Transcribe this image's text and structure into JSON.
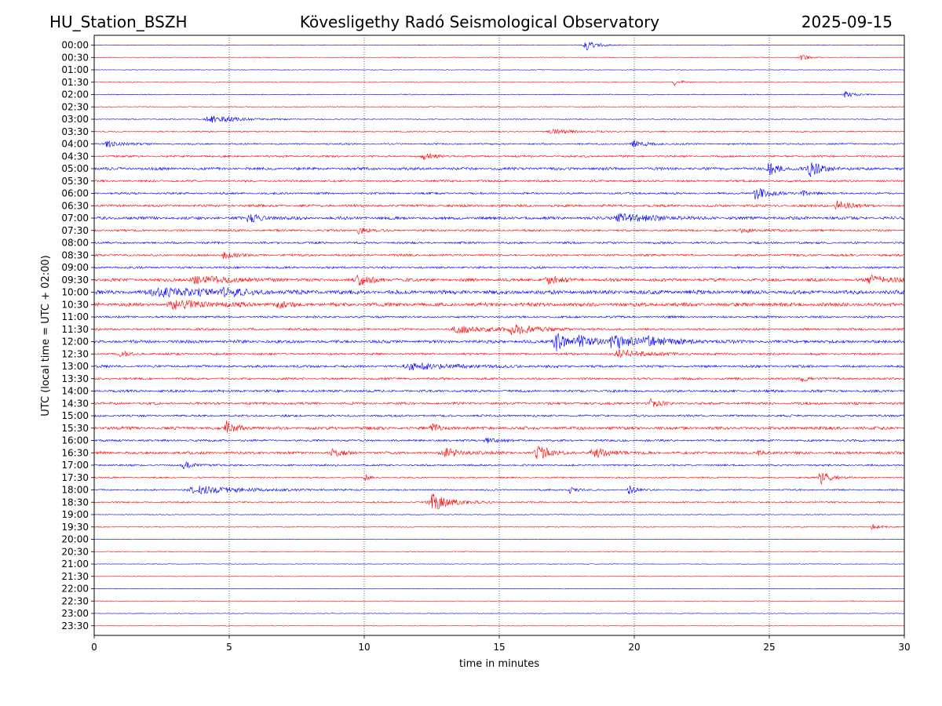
{
  "header": {
    "station": "HU_Station_BSZH",
    "observatory": "Kövesligethy Radó Seismological Observatory",
    "date": "2025-09-15"
  },
  "chart_data": {
    "type": "line",
    "title": "Kövesligethy Radó Seismological Observatory",
    "xlabel": "time in minutes",
    "ylabel": "UTC (local time = UTC + 02:00)",
    "xlim": [
      0,
      30
    ],
    "x_ticks": [
      0,
      5,
      10,
      15,
      20,
      25,
      30
    ],
    "x_gridlines": [
      5,
      10,
      15,
      20,
      25
    ],
    "x_grid_style": "dotted",
    "row_labels": [
      "00:00",
      "00:30",
      "01:00",
      "01:30",
      "02:00",
      "02:30",
      "03:00",
      "03:30",
      "04:00",
      "04:30",
      "05:00",
      "05:30",
      "06:00",
      "06:30",
      "07:00",
      "07:30",
      "08:00",
      "08:30",
      "09:00",
      "09:30",
      "10:00",
      "10:30",
      "11:00",
      "11:30",
      "12:00",
      "12:30",
      "13:00",
      "13:30",
      "14:00",
      "14:30",
      "15:00",
      "15:30",
      "16:00",
      "16:30",
      "17:00",
      "17:30",
      "18:00",
      "18:30",
      "19:00",
      "19:30",
      "20:00",
      "20:30",
      "21:00",
      "21:30",
      "22:00",
      "22:30",
      "23:00",
      "23:30"
    ],
    "row_colors": [
      "#0000ff",
      "#ff0000"
    ],
    "row_background_amplitude": [
      0.5,
      0.5,
      0.4,
      0.5,
      0.6,
      0.6,
      0.6,
      0.8,
      1.0,
      1.3,
      1.8,
      1.4,
      1.4,
      1.6,
      2.0,
      1.4,
      1.4,
      1.4,
      1.4,
      2.0,
      2.6,
      2.4,
      1.4,
      1.4,
      2.0,
      1.4,
      1.6,
      1.4,
      1.6,
      1.6,
      1.4,
      2.0,
      1.4,
      1.8,
      1.2,
      1.0,
      1.0,
      1.0,
      0.5,
      0.6,
      0.4,
      0.5,
      0.4,
      0.4,
      0.4,
      0.4,
      0.4,
      0.4
    ],
    "events": [
      {
        "row": 0,
        "minute": 18.2,
        "amplitude": 7,
        "duration": 0.5
      },
      {
        "row": 1,
        "minute": 26.2,
        "amplitude": 4,
        "duration": 0.3
      },
      {
        "row": 3,
        "minute": 21.5,
        "amplitude": 5,
        "duration": 0.3
      },
      {
        "row": 4,
        "minute": 27.8,
        "amplitude": 4,
        "duration": 0.4
      },
      {
        "row": 6,
        "minute": 4.3,
        "amplitude": 5,
        "duration": 1.2
      },
      {
        "row": 7,
        "minute": 17.0,
        "amplitude": 3,
        "duration": 1.0
      },
      {
        "row": 8,
        "minute": 0.5,
        "amplitude": 4,
        "duration": 0.6
      },
      {
        "row": 8,
        "minute": 20.0,
        "amplitude": 4,
        "duration": 0.6
      },
      {
        "row": 9,
        "minute": 12.2,
        "amplitude": 4,
        "duration": 0.5
      },
      {
        "row": 10,
        "minute": 25.0,
        "amplitude": 9,
        "duration": 0.4
      },
      {
        "row": 10,
        "minute": 26.5,
        "amplitude": 11,
        "duration": 0.5
      },
      {
        "row": 12,
        "minute": 24.5,
        "amplitude": 8,
        "duration": 0.5
      },
      {
        "row": 12,
        "minute": 26.2,
        "amplitude": 4,
        "duration": 0.3
      },
      {
        "row": 13,
        "minute": 27.5,
        "amplitude": 7,
        "duration": 0.5
      },
      {
        "row": 14,
        "minute": 5.7,
        "amplitude": 5,
        "duration": 0.6
      },
      {
        "row": 14,
        "minute": 19.5,
        "amplitude": 5,
        "duration": 1.4
      },
      {
        "row": 15,
        "minute": 9.8,
        "amplitude": 4,
        "duration": 0.4
      },
      {
        "row": 15,
        "minute": 24.0,
        "amplitude": 3,
        "duration": 0.5
      },
      {
        "row": 17,
        "minute": 4.8,
        "amplitude": 5,
        "duration": 0.4
      },
      {
        "row": 19,
        "minute": 3.8,
        "amplitude": 5,
        "duration": 1.5
      },
      {
        "row": 19,
        "minute": 9.8,
        "amplitude": 6,
        "duration": 0.6
      },
      {
        "row": 19,
        "minute": 16.8,
        "amplitude": 5,
        "duration": 0.6
      },
      {
        "row": 19,
        "minute": 28.8,
        "amplitude": 5,
        "duration": 1.0
      },
      {
        "row": 20,
        "minute": 2.5,
        "amplitude": 5,
        "duration": 2.5
      },
      {
        "row": 20,
        "minute": 4.8,
        "amplitude": 6,
        "duration": 0.5
      },
      {
        "row": 21,
        "minute": 3.0,
        "amplitude": 5,
        "duration": 1.5
      },
      {
        "row": 21,
        "minute": 6.8,
        "amplitude": 4,
        "duration": 0.4
      },
      {
        "row": 23,
        "minute": 13.5,
        "amplitude": 5,
        "duration": 1.4
      },
      {
        "row": 23,
        "minute": 15.5,
        "amplitude": 6,
        "duration": 1.0
      },
      {
        "row": 24,
        "minute": 17.1,
        "amplitude": 12,
        "duration": 0.6
      },
      {
        "row": 24,
        "minute": 18.0,
        "amplitude": 7,
        "duration": 0.6
      },
      {
        "row": 24,
        "minute": 19.2,
        "amplitude": 10,
        "duration": 0.9
      },
      {
        "row": 24,
        "minute": 20.5,
        "amplitude": 5,
        "duration": 1.2
      },
      {
        "row": 25,
        "minute": 1.0,
        "amplitude": 5,
        "duration": 0.3
      },
      {
        "row": 25,
        "minute": 19.5,
        "amplitude": 5,
        "duration": 1.2
      },
      {
        "row": 26,
        "minute": 11.8,
        "amplitude": 4,
        "duration": 2.0
      },
      {
        "row": 27,
        "minute": 26.2,
        "amplitude": 4,
        "duration": 0.3
      },
      {
        "row": 29,
        "minute": 20.6,
        "amplitude": 5,
        "duration": 0.4
      },
      {
        "row": 31,
        "minute": 4.9,
        "amplitude": 10,
        "duration": 0.4
      },
      {
        "row": 31,
        "minute": 12.5,
        "amplitude": 5,
        "duration": 0.4
      },
      {
        "row": 32,
        "minute": 14.5,
        "amplitude": 4,
        "duration": 0.4
      },
      {
        "row": 33,
        "minute": 8.8,
        "amplitude": 5,
        "duration": 0.4
      },
      {
        "row": 33,
        "minute": 13.0,
        "amplitude": 5,
        "duration": 0.8
      },
      {
        "row": 33,
        "minute": 16.4,
        "amplitude": 11,
        "duration": 0.5
      },
      {
        "row": 33,
        "minute": 18.5,
        "amplitude": 6,
        "duration": 0.7
      },
      {
        "row": 33,
        "minute": 24.6,
        "amplitude": 4,
        "duration": 0.3
      },
      {
        "row": 34,
        "minute": 3.3,
        "amplitude": 4,
        "duration": 0.5
      },
      {
        "row": 35,
        "minute": 10.0,
        "amplitude": 4,
        "duration": 0.2
      },
      {
        "row": 35,
        "minute": 26.9,
        "amplitude": 9,
        "duration": 0.4
      },
      {
        "row": 36,
        "minute": 3.8,
        "amplitude": 5,
        "duration": 2.0
      },
      {
        "row": 36,
        "minute": 17.6,
        "amplitude": 5,
        "duration": 0.3
      },
      {
        "row": 36,
        "minute": 19.8,
        "amplitude": 6,
        "duration": 0.3
      },
      {
        "row": 37,
        "minute": 12.5,
        "amplitude": 11,
        "duration": 0.8
      },
      {
        "row": 39,
        "minute": 28.8,
        "amplitude": 4,
        "duration": 0.3
      }
    ]
  }
}
